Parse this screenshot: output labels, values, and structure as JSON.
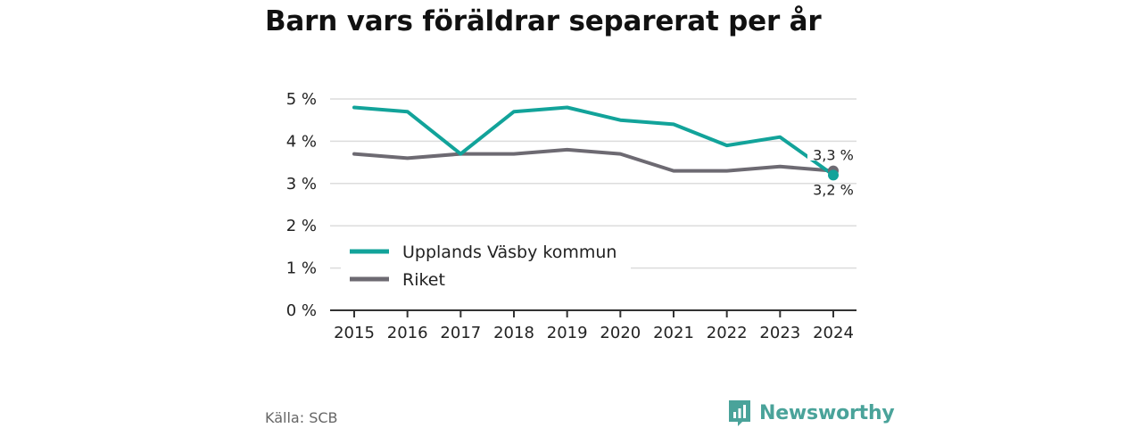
{
  "title": "Barn vars föräldrar separerat per år",
  "source": "Källa: SCB",
  "brand": {
    "name": "Newsworthy",
    "icon": "newsworthy-logo-icon",
    "color": "#4aa39a"
  },
  "chart_data": {
    "type": "line",
    "title": "Barn vars föräldrar separerat per år",
    "x": [
      "2015",
      "2016",
      "2017",
      "2018",
      "2019",
      "2020",
      "2021",
      "2022",
      "2023",
      "2024"
    ],
    "y_ticks": [
      "0 %",
      "1 %",
      "2 %",
      "3 %",
      "4 %",
      "5 %"
    ],
    "ylim": [
      0,
      5
    ],
    "grid": true,
    "legend_position": "bottom-left",
    "series": [
      {
        "name": "Upplands Väsby kommun",
        "color": "#12a39a",
        "values": [
          4.8,
          4.7,
          3.7,
          4.7,
          4.8,
          4.5,
          4.4,
          3.9,
          4.1,
          3.2
        ],
        "end_label": "3,2 %"
      },
      {
        "name": "Riket",
        "color": "#6d6a72",
        "values": [
          3.7,
          3.6,
          3.7,
          3.7,
          3.8,
          3.7,
          3.3,
          3.3,
          3.4,
          3.3
        ],
        "end_label": "3,3 %"
      }
    ]
  }
}
